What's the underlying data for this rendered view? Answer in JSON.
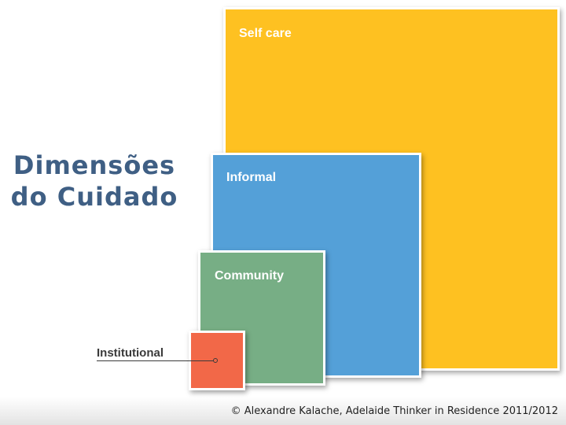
{
  "slide": {
    "title_line1": "Dimensões",
    "title_line2": "do Cuidado",
    "footer": "© Alexandre Kalache, Adelaide Thinker in Residence 2011/2012"
  },
  "diagram": {
    "self_care": {
      "label": "Self care",
      "color": "#fec121"
    },
    "informal": {
      "label": "Informal",
      "color": "#54a0d8"
    },
    "community": {
      "label": "Community",
      "color": "#77ae85"
    },
    "institutional": {
      "label": "Institutional",
      "color": "#f26848"
    }
  }
}
